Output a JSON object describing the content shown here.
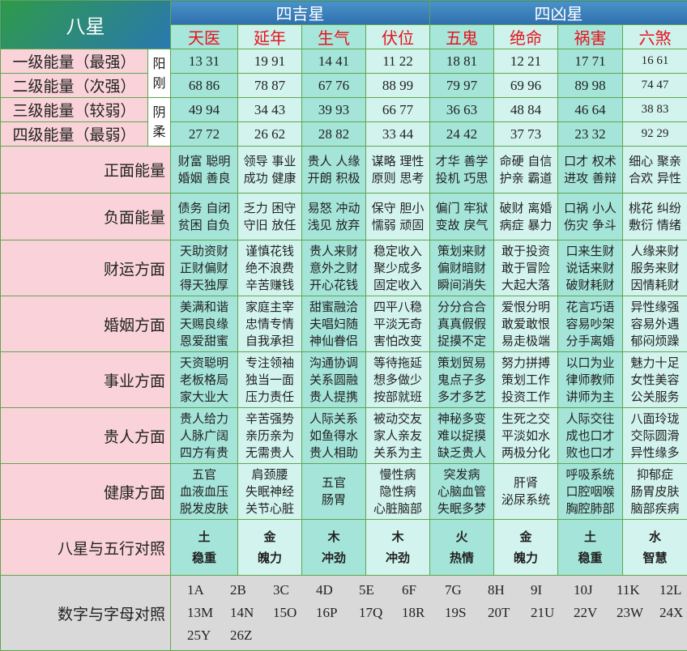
{
  "header": {
    "title": "八星",
    "groups": [
      "四吉星",
      "四凶星"
    ],
    "stars": [
      "天医",
      "延年",
      "生气",
      "伏位",
      "五鬼",
      "绝命",
      "祸害",
      "六煞"
    ]
  },
  "energy": {
    "yinyang": [
      "阳\n刚",
      "阴\n柔"
    ],
    "rows": [
      {
        "label": "一级能量（最强）",
        "values": [
          "13 31",
          "19 91",
          "14 41",
          "11 22",
          "18 81",
          "12 21",
          "17 71",
          "16 61"
        ]
      },
      {
        "label": "二级能量（次强）",
        "values": [
          "68 86",
          "78 87",
          "67 76",
          "88 99",
          "79 97",
          "69 96",
          "89 98",
          "74 47"
        ]
      },
      {
        "label": "三级能量（较弱）",
        "values": [
          "49 94",
          "34 43",
          "39 93",
          "66 77",
          "36 63",
          "48 84",
          "46 64",
          "38 83"
        ]
      },
      {
        "label": "四级能量（最弱）",
        "values": [
          "27 72",
          "26 62",
          "28 82",
          "33 44",
          "24 42",
          "37 73",
          "23 32",
          "92 29"
        ]
      }
    ]
  },
  "traits": [
    {
      "label": "正面能量",
      "cells": [
        "财富 聪明\n婚姻 善良",
        "领导 事业\n成功 健康",
        "贵人 人缘\n开朗 积极",
        "谋略 理性\n原则 思考",
        "才华 善学\n投机 巧思",
        "命硬 自信\n护亲 霸道",
        "口才 权术\n进攻 善辩",
        "细心 聚亲\n合欢 异性"
      ]
    },
    {
      "label": "负面能量",
      "cells": [
        "债务 自闭\n贫困 自负",
        "乏力 困守\n守旧 放任",
        "易怒 冲动\n浅见 放弃",
        "保守 胆小\n懦弱 顽固",
        "偏门 牢狱\n变故 戾气",
        "破财 离婚\n病症 暴力",
        "口祸 小人\n伤灾 争斗",
        "桃花 纠纷\n敷衍 情绪"
      ]
    },
    {
      "label": "财运方面",
      "cells": [
        "天助资财\n正财偏财\n得天独厚",
        "谨慎花钱\n绝不浪费\n辛苦赚钱",
        "贵人来财\n意外之财\n开心花钱",
        "稳定收入\n聚少成多\n固定收入",
        "策划来财\n偏财暗财\n瞬间消失",
        "敢于投资\n敢于冒险\n大起大落",
        "口来生财\n说话来财\n破财耗财",
        "人缘来财\n服务来财\n因情耗财"
      ]
    },
    {
      "label": "婚姻方面",
      "cells": [
        "美满和谐\n天赐良缘\n恩爱甜蜜",
        "家庭主宰\n忠情专情\n自我承担",
        "甜蜜融洽\n夫唱妇随\n神仙眷侣",
        "四平八稳\n平淡无奇\n害怕改变",
        "分分合合\n真真假假\n捉摸不定",
        "爱恨分明\n敢爱敢恨\n易走极端",
        "花言巧语\n容易吵架\n分手离婚",
        "异性缘强\n容易外遇\n郁闷烦躁"
      ]
    },
    {
      "label": "事业方面",
      "cells": [
        "天资聪明\n老板格局\n家大业大",
        "专注领袖\n独当一面\n压力责任",
        "沟通协调\n关系圆融\n贵人提携",
        "等待拖延\n想多做少\n按部就班",
        "策划贸易\n鬼点子多\n多才多艺",
        "努力拼搏\n策划工作\n投资工作",
        "以口为业\n律师教师\n讲师为主",
        "魅力十足\n女性美容\n公关服务"
      ]
    },
    {
      "label": "贵人方面",
      "cells": [
        "贵人给力\n人脉广阔\n四方有贵",
        "辛苦强势\n亲历亲为\n无需贵人",
        "人际关系\n如鱼得水\n贵人相助",
        "被动交友\n家人亲友\n关系为主",
        "神秘多变\n难以捉摸\n缺乏贵人",
        "生死之交\n平淡如水\n两极分化",
        "人际交往\n成也口才\n败也口才",
        "八面玲珑\n交际圆滑\n异性缘多"
      ]
    },
    {
      "label": "健康方面",
      "cells": [
        "五官\n血液血压\n脱发皮肤",
        "肩颈腰\n失眠神经\n关节心脏",
        "五官\n肠胃",
        "慢性病\n隐性病\n心脏脑部",
        "突发病\n心脑血管\n失眠多梦",
        "肝肾\n泌尿系统",
        "呼吸系统\n口腔咽喉\n胸腔肺部",
        "抑郁症\n肠胃皮肤\n脑部疾病"
      ]
    }
  ],
  "wuxing": {
    "label": "八星与五行对照",
    "cells": [
      "土\n稳重",
      "金\n魄力",
      "木\n冲劲",
      "木\n冲劲",
      "火\n热情",
      "金\n魄力",
      "土\n稳重",
      "水\n智慧"
    ]
  },
  "number_letter": {
    "label": "数字与字母对照",
    "items": [
      "1A",
      "2B",
      "3C",
      "4D",
      "5E",
      "6F",
      "7G",
      "8H",
      "9I",
      "10J",
      "11K",
      "12L",
      "13M",
      "14N",
      "15O",
      "16P",
      "17Q",
      "18R",
      "19S",
      "20T",
      "21U",
      "22V",
      "23W",
      "24X",
      "25Y",
      "26Z"
    ]
  },
  "colors": {
    "border": "#5fa64e",
    "star_text": "#e8121b",
    "label_bg": "#f9d3d9",
    "cell_dark": "#a4e4d9",
    "cell_light": "#d3f4ee",
    "bottom_bg": "#d9d9d9"
  }
}
